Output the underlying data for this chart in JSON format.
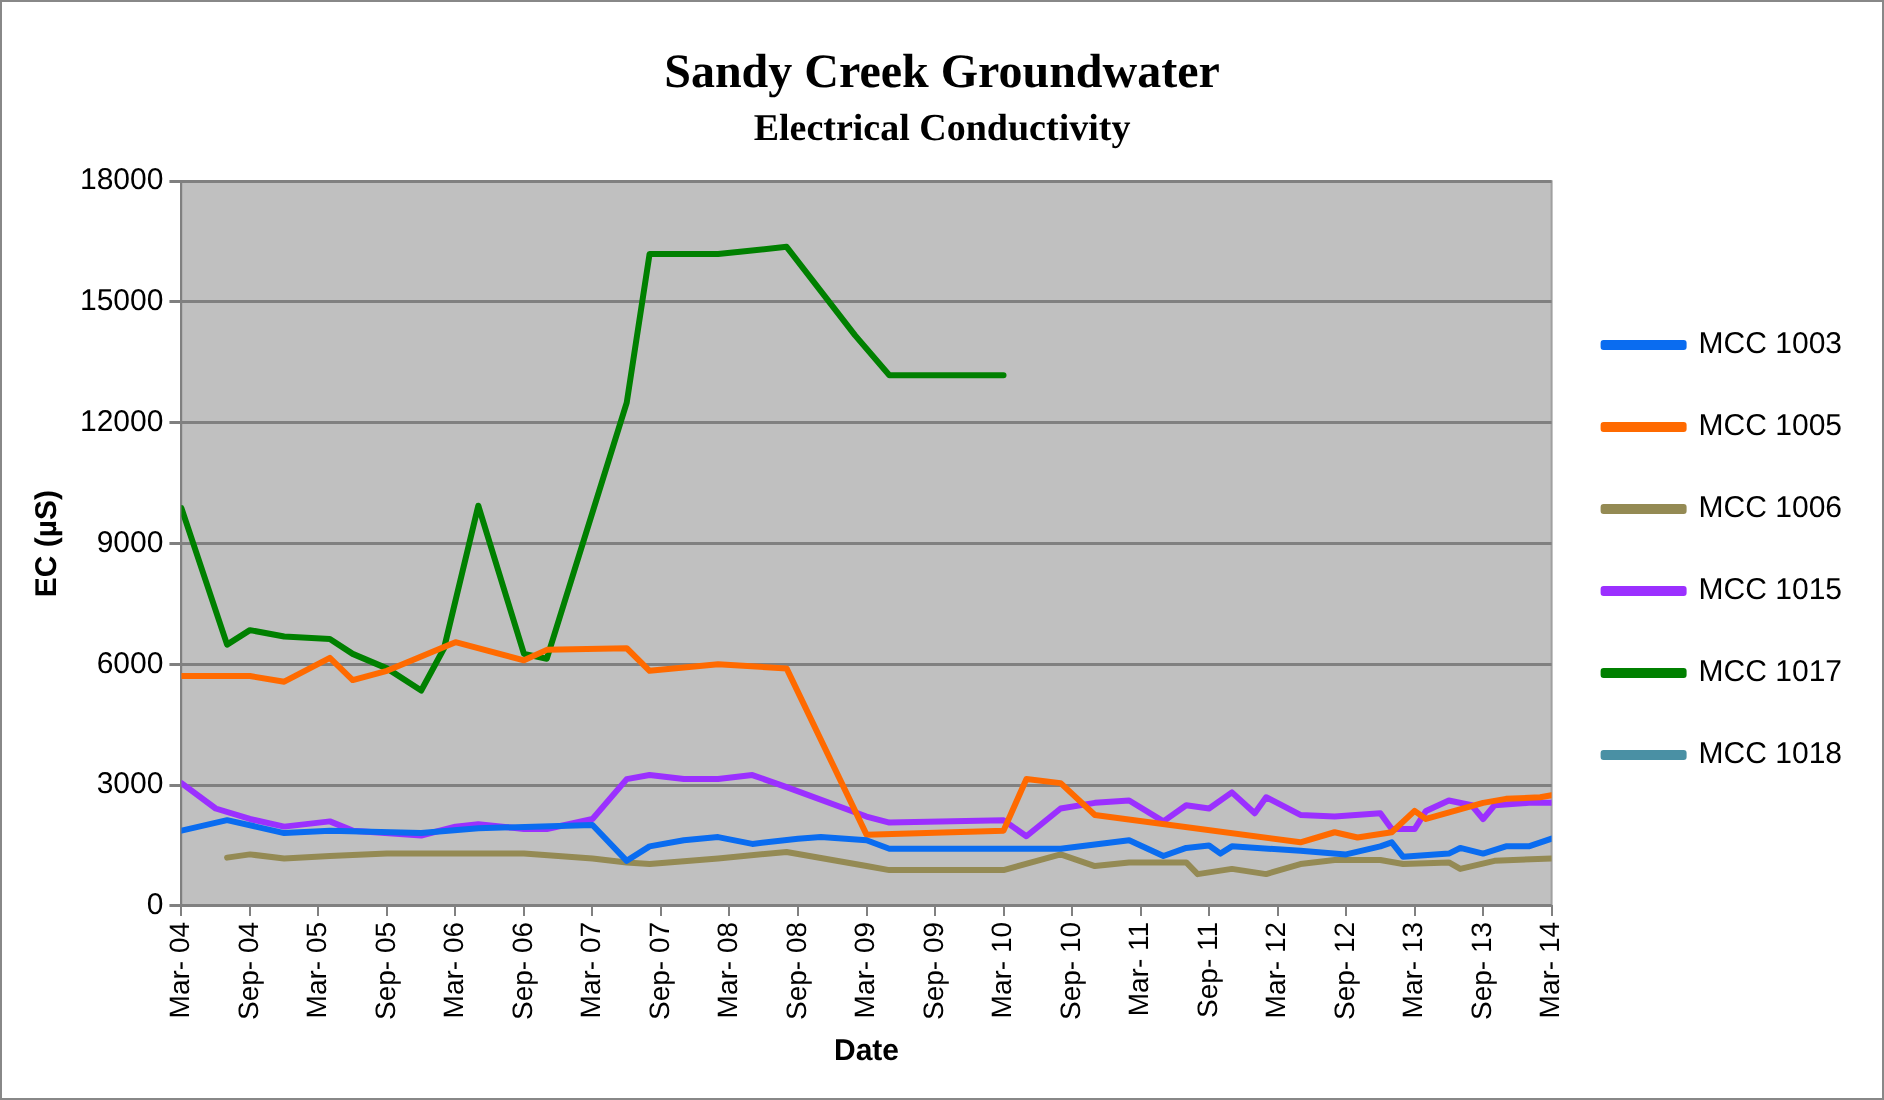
{
  "chart_data": {
    "type": "line",
    "title": "Sandy Creek Groundwater",
    "subtitle": "Electrical Conductivity",
    "xlabel": "Date",
    "ylabel": "EC (µS)",
    "xlim": [
      "2004-03",
      "2014-03"
    ],
    "xticks": [
      {
        "value": "2004-03",
        "label": "Mar- 04"
      },
      {
        "value": "2004-09",
        "label": "Sep- 04"
      },
      {
        "value": "2005-03",
        "label": "Mar- 05"
      },
      {
        "value": "2005-09",
        "label": "Sep- 05"
      },
      {
        "value": "2006-03",
        "label": "Mar- 06"
      },
      {
        "value": "2006-09",
        "label": "Sep- 06"
      },
      {
        "value": "2007-03",
        "label": "Mar- 07"
      },
      {
        "value": "2007-09",
        "label": "Sep- 07"
      },
      {
        "value": "2008-03",
        "label": "Mar- 08"
      },
      {
        "value": "2008-09",
        "label": "Sep- 08"
      },
      {
        "value": "2009-03",
        "label": "Mar- 09"
      },
      {
        "value": "2009-09",
        "label": "Sep- 09"
      },
      {
        "value": "2010-03",
        "label": "Mar- 10"
      },
      {
        "value": "2010-09",
        "label": "Sep- 10"
      },
      {
        "value": "2011-03",
        "label": "Mar- 11"
      },
      {
        "value": "2011-09",
        "label": "Sep- 11"
      },
      {
        "value": "2012-03",
        "label": "Mar- 12"
      },
      {
        "value": "2012-09",
        "label": "Sep- 12"
      },
      {
        "value": "2013-03",
        "label": "Mar- 13"
      },
      {
        "value": "2013-09",
        "label": "Sep- 13"
      },
      {
        "value": "2014-03",
        "label": "Mar- 14"
      }
    ],
    "ylim": [
      0,
      18000
    ],
    "yticks": [
      0,
      3000,
      6000,
      9000,
      12000,
      15000,
      18000
    ],
    "grid": "y",
    "legend": "right",
    "marker": "none",
    "line_style": "solid",
    "series": [
      {
        "name": "MCC 1003",
        "color": "#0a6cf0",
        "x": [
          "2004-03",
          "2004-07",
          "2004-12",
          "2005-04",
          "2005-12",
          "2006-05",
          "2007-03",
          "2007-06",
          "2007-08",
          "2007-11",
          "2008-02",
          "2008-05",
          "2008-09",
          "2008-11",
          "2009-03",
          "2009-05",
          "2010-03",
          "2010-08",
          "2011-02",
          "2011-05",
          "2011-07",
          "2011-09",
          "2011-10",
          "2011-11",
          "2012-05",
          "2012-09",
          "2012-12",
          "2013-01",
          "2013-02",
          "2013-06",
          "2013-07",
          "2013-09",
          "2013-11",
          "2014-01",
          "2014-03"
        ],
        "values": [
          1870,
          2130,
          1810,
          1870,
          1810,
          1930,
          2010,
          1120,
          1480,
          1630,
          1710,
          1540,
          1670,
          1710,
          1630,
          1420,
          1420,
          1420,
          1630,
          1240,
          1440,
          1500,
          1300,
          1480,
          1370,
          1280,
          1480,
          1580,
          1220,
          1300,
          1440,
          1300,
          1480,
          1480,
          1670
        ]
      },
      {
        "name": "MCC 1005",
        "color": "#ff6a00",
        "x": [
          "2004-03",
          "2004-09",
          "2004-12",
          "2005-04",
          "2005-06",
          "2005-09",
          "2006-03",
          "2006-09",
          "2006-11",
          "2007-06",
          "2007-08",
          "2008-02",
          "2008-08",
          "2009-03",
          "2010-03",
          "2010-05",
          "2010-08",
          "2010-11",
          "2012-05",
          "2012-08",
          "2012-10",
          "2013-01",
          "2013-03",
          "2013-04",
          "2013-09",
          "2013-11",
          "2014-02",
          "2014-03"
        ],
        "values": [
          5710,
          5710,
          5570,
          6160,
          5610,
          5840,
          6550,
          6100,
          6360,
          6400,
          5840,
          6000,
          5900,
          1770,
          1870,
          3150,
          3050,
          2260,
          1580,
          1830,
          1700,
          1830,
          2360,
          2160,
          2560,
          2660,
          2700,
          2750
        ]
      },
      {
        "name": "MCC 1006",
        "color": "#948a54",
        "x": [
          "2004-07",
          "2004-09",
          "2004-12",
          "2005-04",
          "2005-09",
          "2006-05",
          "2006-09",
          "2007-03",
          "2007-06",
          "2007-08",
          "2008-02",
          "2008-08",
          "2009-03",
          "2009-05",
          "2010-03",
          "2010-08",
          "2010-11",
          "2011-02",
          "2011-07",
          "2011-08",
          "2011-11",
          "2012-02",
          "2012-05",
          "2012-08",
          "2012-12",
          "2013-02",
          "2013-06",
          "2013-07",
          "2013-10",
          "2014-03"
        ],
        "values": [
          1200,
          1280,
          1180,
          1240,
          1300,
          1300,
          1300,
          1180,
          1080,
          1040,
          1180,
          1340,
          990,
          890,
          890,
          1280,
          990,
          1080,
          1080,
          790,
          920,
          790,
          1040,
          1140,
          1140,
          1040,
          1080,
          920,
          1120,
          1180
        ]
      },
      {
        "name": "MCC 1015",
        "color": "#9b30ff",
        "x": [
          "2004-03",
          "2004-06",
          "2004-09",
          "2004-12",
          "2005-04",
          "2005-06",
          "2005-12",
          "2006-03",
          "2006-05",
          "2006-09",
          "2006-11",
          "2007-03",
          "2007-06",
          "2007-08",
          "2007-11",
          "2008-02",
          "2008-05",
          "2008-08",
          "2009-03",
          "2009-05",
          "2010-03",
          "2010-05",
          "2010-08",
          "2010-11",
          "2011-02",
          "2011-05",
          "2011-07",
          "2011-09",
          "2011-11",
          "2012-01",
          "2012-02",
          "2012-05",
          "2012-08",
          "2012-12",
          "2013-01",
          "2013-03",
          "2013-04",
          "2013-06",
          "2013-08",
          "2013-09",
          "2013-10",
          "2014-01",
          "2014-03"
        ],
        "values": [
          3050,
          2420,
          2160,
          1970,
          2100,
          1870,
          1750,
          1970,
          2030,
          1910,
          1910,
          2160,
          3150,
          3250,
          3150,
          3150,
          3250,
          2950,
          2220,
          2070,
          2130,
          1730,
          2420,
          2560,
          2620,
          2100,
          2500,
          2420,
          2820,
          2300,
          2700,
          2260,
          2220,
          2300,
          1910,
          1910,
          2360,
          2620,
          2500,
          2160,
          2500,
          2560,
          2560
        ]
      },
      {
        "name": "MCC 1017",
        "color": "#008000",
        "x": [
          "2004-03",
          "2004-07",
          "2004-09",
          "2004-12",
          "2005-04",
          "2005-06",
          "2005-09",
          "2005-12",
          "2006-02",
          "2006-05",
          "2006-09",
          "2006-11",
          "2007-06",
          "2007-08",
          "2008-02",
          "2008-08",
          "2009-02",
          "2009-05",
          "2010-03"
        ],
        "values": [
          9880,
          6490,
          6850,
          6690,
          6630,
          6260,
          5900,
          5350,
          6400,
          9940,
          6260,
          6140,
          12500,
          16190,
          16190,
          16370,
          14170,
          13180,
          13180
        ]
      },
      {
        "name": "MCC 1018",
        "color": "#4a90a4"
      }
    ]
  }
}
